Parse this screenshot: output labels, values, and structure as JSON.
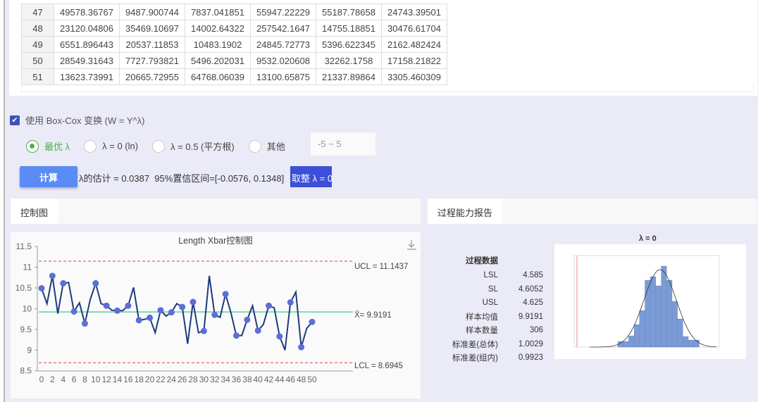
{
  "table": {
    "rows": [
      [
        "47",
        "49578.36767",
        "9487.900744",
        "7837.041851",
        "55947.22229",
        "55187.78658",
        "24743.39501"
      ],
      [
        "48",
        "23120.04806",
        "35469.10697",
        "14002.64322",
        "257542.1647",
        "14755.18851",
        "30476.61704"
      ],
      [
        "49",
        "6551.896443",
        "20537.11853",
        "10483.1902",
        "24845.72773",
        "5396.622345",
        "2162.482424"
      ],
      [
        "50",
        "28549.31643",
        "7727.793821",
        "5496.202031",
        "9532.020608",
        "32262.1758",
        "17158.21822"
      ],
      [
        "51",
        "13623.73991",
        "20665.72955",
        "64768.06039",
        "13100.65875",
        "21337.89864",
        "3305.460309"
      ]
    ]
  },
  "boxcox": {
    "checkbox_label": "使用 Box-Cox 变换 (W = Y^λ)",
    "checked": true,
    "options": [
      "最优 λ",
      "λ = 0 (ln)",
      "λ = 0.5 (平方根)",
      "其他"
    ],
    "selected": 0,
    "range_placeholder": "-5 ~ 5",
    "calc_label": "计算",
    "result": "λ的估计 = 0.0387  95%置信区间=[-0.0576, 0.1348]",
    "rounded": "取整 λ = 0"
  },
  "tabs": {
    "control": "控制图",
    "report": "过程能力报告"
  },
  "chart_data": {
    "type": "line",
    "title": "Length Xbar控制图",
    "x": [
      0,
      1,
      2,
      3,
      4,
      5,
      6,
      7,
      8,
      9,
      10,
      11,
      12,
      13,
      14,
      15,
      16,
      17,
      18,
      19,
      20,
      21,
      22,
      23,
      24,
      25,
      26,
      27,
      28,
      29,
      30,
      31,
      32,
      33,
      34,
      35,
      36,
      37,
      38,
      39,
      40,
      41,
      42,
      43,
      44,
      45,
      46,
      47,
      48,
      49,
      50
    ],
    "values": [
      10.49,
      10.12,
      10.79,
      9.88,
      10.61,
      10.63,
      9.93,
      10.14,
      9.64,
      10.22,
      10.61,
      10.12,
      10.07,
      9.96,
      9.95,
      9.95,
      10.07,
      10.51,
      9.72,
      9.74,
      9.78,
      9.42,
      9.96,
      9.82,
      9.91,
      10.12,
      10.04,
      9.15,
      10.16,
      9.42,
      9.46,
      10.79,
      9.85,
      9.79,
      10.35,
      9.9,
      9.35,
      9.35,
      9.73,
      10.07,
      9.47,
      9.62,
      10.07,
      10.02,
      9.33,
      9.0,
      10.15,
      10.4,
      9.07,
      9.52,
      9.68
    ],
    "ylim": [
      8.5,
      11.5
    ],
    "yticks": [
      "8.5",
      "9",
      "9.5",
      "10",
      "10.5",
      "11",
      "11.5"
    ],
    "xticks": [
      "0",
      "2",
      "4",
      "6",
      "8",
      "10",
      "12",
      "14",
      "16",
      "18",
      "20",
      "22",
      "24",
      "26",
      "28",
      "30",
      "32",
      "34",
      "36",
      "38",
      "40",
      "42",
      "44",
      "46",
      "48",
      "50"
    ],
    "ucl": 11.1437,
    "lcl": 8.6945,
    "center": 9.9191,
    "ucl_label": "UCL = 11.1437",
    "lcl_label": "LCL = 8.6945",
    "center_label": "X̄= 9.9191",
    "colors": {
      "line": "#1f3a7a",
      "marker": "#5b6fd6",
      "limits": "#e04030",
      "center": "#7fdcb0"
    }
  },
  "report": {
    "heading": "过程数据",
    "hist_title": "λ = 0",
    "items": [
      {
        "k": "LSL",
        "v": "4.585"
      },
      {
        "k": "SL",
        "v": "4.6052"
      },
      {
        "k": "USL",
        "v": "4.625"
      },
      {
        "k": "样本均值",
        "v": "9.9191"
      },
      {
        "k": "样本数量",
        "v": "306"
      },
      {
        "k": "标准差(总体)",
        "v": "1.0029"
      },
      {
        "k": "标准差(组内)",
        "v": "0.9923"
      }
    ]
  }
}
